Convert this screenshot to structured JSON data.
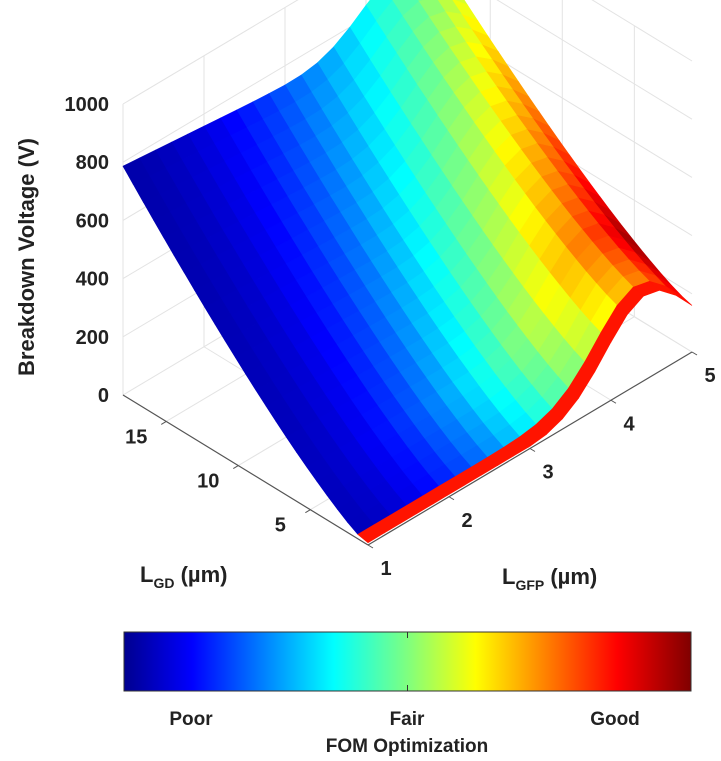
{
  "chart_data": {
    "type": "surface3d",
    "zlabel": "Breakdown Voltage (V)",
    "xlabel": {
      "main": "L",
      "sub": "GD",
      "rest": " (µm)"
    },
    "ylabel": {
      "main": "L",
      "sub": "GFP",
      "rest": " (µm)"
    },
    "x_ticks": [
      "5",
      "10",
      "15"
    ],
    "y_ticks": [
      "1",
      "2",
      "3",
      "4",
      "5"
    ],
    "z_ticks": [
      "0",
      "200",
      "400",
      "600",
      "800",
      "1000"
    ],
    "xlim": [
      1,
      18
    ],
    "ylim": [
      1,
      5
    ],
    "zlim": [
      0,
      1000
    ],
    "grid": true,
    "colormap": "jet",
    "colorbar": {
      "title": "FOM Optimization",
      "ticks": [
        "Poor",
        "Fair",
        "Good"
      ]
    }
  }
}
